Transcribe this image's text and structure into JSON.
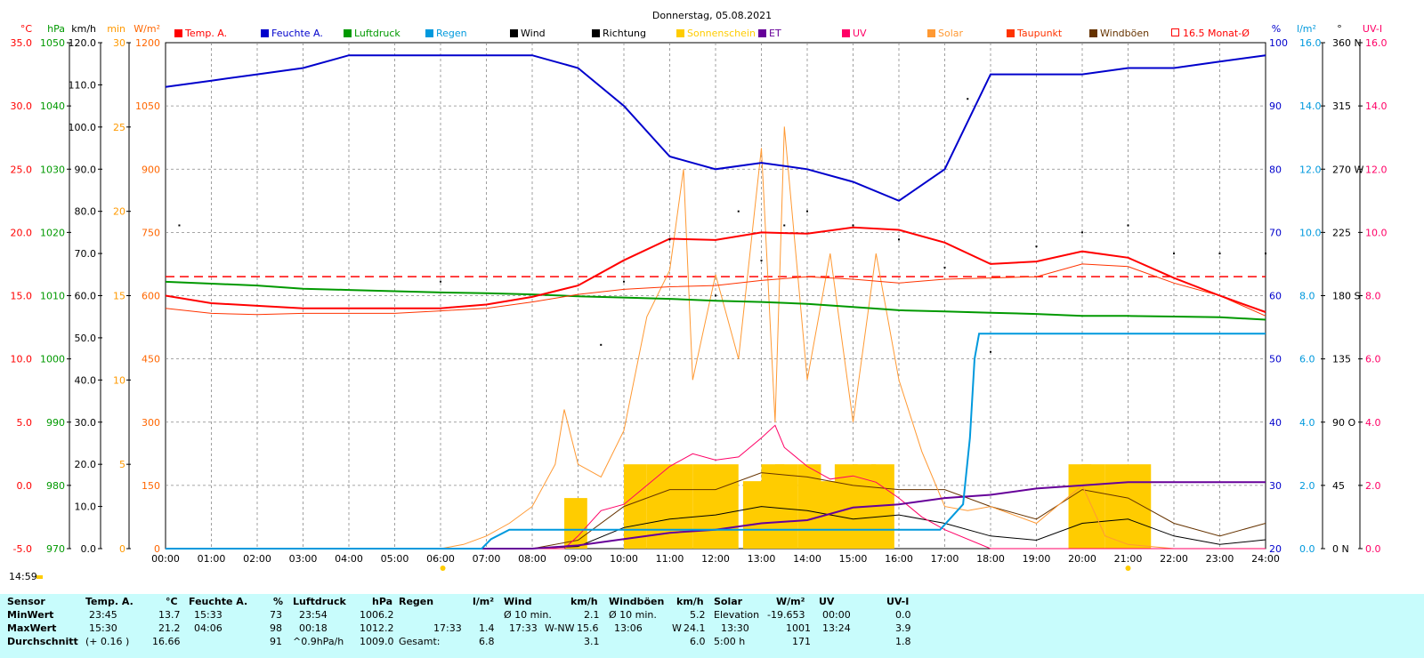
{
  "title": "Donnerstag, 05.08.2021",
  "time_stamp": "14:59",
  "axes_left": [
    {
      "unit": "°C",
      "color": "#ff0000",
      "ticks": [
        "35.0",
        "30.0",
        "25.0",
        "20.0",
        "15.0",
        "10.0",
        "5.0",
        "0.0",
        "-5.0"
      ]
    },
    {
      "unit": "hPa",
      "color": "#009900",
      "ticks": [
        "1050",
        "1040",
        "1030",
        "1020",
        "1010",
        "1000",
        "990",
        "980",
        "970"
      ]
    },
    {
      "unit": "km/h",
      "color": "#000000",
      "ticks": [
        "120.0",
        "110.0",
        "100.0",
        "90.0",
        "80.0",
        "70.0",
        "60.0",
        "50.0",
        "40.0",
        "30.0",
        "20.0",
        "10.0",
        "0.0"
      ]
    },
    {
      "unit": "min",
      "color": "#ff9900",
      "ticks": [
        "30",
        "25",
        "20",
        "15",
        "10",
        "5",
        "0"
      ]
    },
    {
      "unit": "W/m²",
      "color": "#ff6600",
      "ticks": [
        "1200",
        "1050",
        "900",
        "750",
        "600",
        "450",
        "300",
        "150",
        "0"
      ]
    }
  ],
  "axes_right": [
    {
      "unit": "%",
      "color": "#0000cc",
      "ticks": [
        "100",
        "90",
        "80",
        "70",
        "60",
        "50",
        "40",
        "30",
        "20"
      ]
    },
    {
      "unit": "l/m²",
      "color": "#0099dd",
      "ticks": [
        "16.0",
        "14.0",
        "12.0",
        "10.0",
        "8.0",
        "6.0",
        "4.0",
        "2.0",
        "0.0"
      ]
    },
    {
      "unit": "°",
      "color": "#000000",
      "ticks": [
        "360 N",
        "315",
        "270 W",
        "225",
        "180 S",
        "135",
        "90 O",
        "45",
        "0 N"
      ]
    },
    {
      "unit": "UV-I",
      "color": "#ff0066",
      "ticks": [
        "16.0",
        "14.0",
        "12.0",
        "10.0",
        "8.0",
        "6.0",
        "4.0",
        "2.0",
        "0.0"
      ]
    }
  ],
  "x_ticks": [
    "00:00",
    "01:00",
    "02:00",
    "03:00",
    "04:00",
    "05:00",
    "06:00",
    "07:00",
    "08:00",
    "09:00",
    "10:00",
    "11:00",
    "12:00",
    "13:00",
    "14:00",
    "15:00",
    "16:00",
    "17:00",
    "18:00",
    "19:00",
    "20:00",
    "21:00",
    "22:00",
    "23:00",
    "24:00"
  ],
  "legend": [
    {
      "label": "Temp. A.",
      "color": "#ff0000"
    },
    {
      "label": "Feuchte A.",
      "color": "#0000cc"
    },
    {
      "label": "Luftdruck",
      "color": "#009900"
    },
    {
      "label": "Regen",
      "color": "#0099dd"
    },
    {
      "label": "Wind",
      "color": "#000000"
    },
    {
      "label": "Richtung",
      "color": "#000000"
    },
    {
      "label": "Sonnenschein",
      "color": "#ffcc00"
    },
    {
      "label": "ET",
      "color": "#660099"
    },
    {
      "label": "UV",
      "color": "#ff0066"
    },
    {
      "label": "Solar",
      "color": "#ff9933"
    },
    {
      "label": "Taupunkt",
      "color": "#ff3300"
    },
    {
      "label": "Windböen",
      "color": "#663300"
    },
    {
      "label": "16.5 Monat-Ø",
      "color": "#ff0000"
    }
  ],
  "chart_data": {
    "type": "line",
    "title": "Donnerstag, 05.08.2021",
    "x_range": [
      "00:00",
      "24:00"
    ],
    "month_avg_temp": 16.5,
    "series": [
      {
        "name": "Temp. A.",
        "unit": "°C",
        "x": [
          0,
          1,
          2,
          3,
          4,
          5,
          6,
          7,
          8,
          9,
          10,
          11,
          12,
          13,
          14,
          15,
          16,
          17,
          18,
          19,
          20,
          21,
          22,
          23,
          24
        ],
        "values": [
          15.0,
          14.4,
          14.2,
          14.0,
          14.0,
          14.0,
          14.0,
          14.3,
          14.9,
          15.8,
          17.8,
          19.5,
          19.4,
          20.0,
          19.9,
          20.4,
          20.2,
          19.2,
          17.5,
          17.7,
          18.5,
          18.0,
          16.4,
          15.0,
          13.7
        ]
      },
      {
        "name": "Feuchte A.",
        "unit": "%",
        "x": [
          0,
          1,
          2,
          3,
          4,
          5,
          6,
          7,
          8,
          9,
          10,
          11,
          12,
          13,
          14,
          15,
          16,
          17,
          18,
          19,
          20,
          21,
          22,
          23,
          24
        ],
        "values": [
          93,
          94,
          95,
          96,
          98,
          98,
          98,
          98,
          98,
          96,
          90,
          82,
          80,
          81,
          80,
          78,
          75,
          80,
          95,
          95,
          95,
          96,
          96,
          97,
          98
        ]
      },
      {
        "name": "Luftdruck",
        "unit": "hPa",
        "x": [
          0,
          1,
          2,
          3,
          4,
          5,
          6,
          7,
          8,
          9,
          10,
          11,
          12,
          13,
          14,
          15,
          16,
          17,
          18,
          19,
          20,
          21,
          22,
          23,
          24
        ],
        "values": [
          1012.2,
          1011.9,
          1011.6,
          1011.1,
          1010.9,
          1010.7,
          1010.5,
          1010.4,
          1010.2,
          1009.9,
          1009.7,
          1009.5,
          1009.2,
          1009.0,
          1008.7,
          1008.2,
          1007.7,
          1007.5,
          1007.3,
          1007.1,
          1006.8,
          1006.8,
          1006.7,
          1006.6,
          1006.2
        ]
      },
      {
        "name": "Taupunkt",
        "unit": "°C",
        "x": [
          0,
          1,
          2,
          3,
          4,
          5,
          6,
          7,
          8,
          9,
          10,
          11,
          12,
          13,
          14,
          15,
          16,
          17,
          18,
          19,
          20,
          21,
          22,
          23,
          24
        ],
        "values": [
          14.0,
          13.6,
          13.5,
          13.6,
          13.6,
          13.6,
          13.8,
          14.0,
          14.5,
          15.1,
          15.5,
          15.7,
          15.8,
          16.2,
          16.5,
          16.3,
          16.0,
          16.3,
          16.4,
          16.5,
          17.5,
          17.3,
          16.0,
          15.0,
          13.4
        ]
      },
      {
        "name": "Solar",
        "unit": "W/m²",
        "x": [
          6,
          6.5,
          7,
          7.5,
          8,
          8.5,
          8.7,
          9,
          9.5,
          10,
          10.5,
          11,
          11.3,
          11.5,
          12,
          12.5,
          13,
          13.3,
          13.5,
          14,
          14.5,
          15,
          15.5,
          16,
          16.5,
          17,
          17.5,
          18,
          19,
          20,
          20.5,
          21,
          22,
          24
        ],
        "values": [
          0,
          10,
          30,
          60,
          100,
          200,
          330,
          200,
          170,
          280,
          550,
          660,
          900,
          400,
          650,
          450,
          950,
          300,
          1001,
          400,
          700,
          300,
          700,
          400,
          230,
          100,
          90,
          100,
          60,
          150,
          30,
          10,
          0,
          0
        ]
      },
      {
        "name": "Regen",
        "unit": "l/m²",
        "x": [
          0,
          6.9,
          7.1,
          7.5,
          16.9,
          17.4,
          17.55,
          17.65,
          17.75,
          24
        ],
        "values": [
          0,
          0,
          0.3,
          0.6,
          0.6,
          1.4,
          3.5,
          6.0,
          6.8,
          6.8
        ]
      },
      {
        "name": "ET",
        "unit": "l/m²",
        "x": [
          0,
          8,
          9,
          10,
          11,
          12,
          13,
          14,
          15,
          16,
          17,
          18,
          19,
          20,
          21,
          24
        ],
        "values": [
          0,
          0,
          0.1,
          0.3,
          0.5,
          0.6,
          0.8,
          0.9,
          1.3,
          1.4,
          1.6,
          1.7,
          1.9,
          2.0,
          2.1,
          2.1
        ]
      },
      {
        "name": "UV",
        "unit": "UV-I",
        "x": [
          0,
          8,
          8.7,
          9,
          9.5,
          10,
          10.5,
          11,
          11.5,
          12,
          12.5,
          13,
          13.3,
          13.5,
          14,
          14.5,
          15,
          15.5,
          16,
          16.5,
          17,
          18,
          24
        ],
        "values": [
          0,
          0,
          0,
          0.4,
          1.2,
          1.4,
          2.0,
          2.6,
          3.0,
          2.8,
          2.9,
          3.5,
          3.9,
          3.2,
          2.6,
          2.2,
          2.3,
          2.1,
          1.6,
          1.0,
          0.6,
          0,
          0
        ]
      },
      {
        "name": "Wind",
        "unit": "km/h",
        "x": [
          0,
          8,
          9,
          10,
          11,
          12,
          13,
          14,
          15,
          16,
          17,
          18,
          19,
          20,
          21,
          22,
          23,
          24
        ],
        "values": [
          0,
          0,
          0.5,
          5,
          7,
          8,
          10,
          9,
          7,
          8,
          6,
          3,
          2,
          6,
          7,
          3,
          1,
          2.1
        ]
      },
      {
        "name": "Windböen",
        "unit": "km/h",
        "x": [
          0,
          8,
          9,
          10,
          11,
          12,
          13,
          14,
          15,
          16,
          17,
          18,
          19,
          20,
          21,
          22,
          23,
          24
        ],
        "values": [
          0,
          0,
          2,
          10,
          14,
          14,
          18,
          17,
          15,
          14,
          14,
          10,
          7,
          14,
          12,
          6,
          3,
          6
        ]
      },
      {
        "name": "Richtung",
        "unit": "°",
        "x": [
          0.3,
          6,
          9.5,
          10,
          11,
          12,
          12.5,
          13,
          13.5,
          14,
          15,
          16,
          17,
          17.5,
          18,
          19,
          20,
          21,
          22,
          23,
          24
        ],
        "values": [
          230,
          190,
          145,
          190,
          220,
          180,
          240,
          205,
          230,
          240,
          230,
          220,
          200,
          320,
          140,
          215,
          225,
          230,
          210,
          210,
          210
        ]
      },
      {
        "name": "Sonnenschein",
        "unit": "min",
        "x": [
          8.7,
          10,
          10.5,
          11,
          11.5,
          12,
          12.6,
          13,
          13.3,
          13.8,
          14.2,
          14.6,
          15,
          15.4,
          19.7,
          20,
          20.5,
          21
        ],
        "values": [
          3,
          5,
          5,
          5,
          5,
          5,
          4,
          5,
          5,
          5,
          4,
          5,
          5,
          5,
          5,
          5,
          5,
          5
        ]
      }
    ]
  },
  "summary": {
    "row_labels": [
      "Sensor",
      "MinWert",
      "MaxWert",
      "Durchschnitt"
    ],
    "temp": {
      "header": "Temp. A.",
      "unit": "°C",
      "min_time": "23:45",
      "min": "13.7",
      "max_time": "15:30",
      "max": "21.2",
      "avg_note": "(+ 0.16 )",
      "avg": "16.66"
    },
    "feuchte": {
      "header": "Feuchte A.",
      "unit": "%",
      "min_time": "15:33",
      "min": "73",
      "max_time": "04:06",
      "max": "98",
      "avg": "91"
    },
    "luftdruck": {
      "header": "Luftdruck",
      "unit": "hPa",
      "min_time": "23:54",
      "min": "1006.2",
      "max_time": "00:18",
      "max": "1012.2",
      "avg_note": "^0.9hPa/h",
      "avg": "1009.0"
    },
    "regen": {
      "header": "Regen",
      "unit": "l/m²",
      "max_time": "17:33",
      "max": "1.4",
      "total_label": "Gesamt:",
      "total": "6.8"
    },
    "wind": {
      "header": "Wind",
      "unit": "km/h",
      "min_label": "Ø 10 min.",
      "min": "2.1",
      "max_time": "17:33",
      "max_dir": "W-NW",
      "max": "15.6",
      "avg": "3.1"
    },
    "windboeen": {
      "header": "Windböen",
      "unit": "km/h",
      "min_label": "Ø 10 min.",
      "min": "5.2",
      "max_time": "13:06",
      "max_dir": "W",
      "max": "24.1",
      "avg": "6.0"
    },
    "solar": {
      "header": "Solar",
      "unit": "W/m²",
      "min_label": "Elevation",
      "min": "-19.653",
      "max_time": "13:30",
      "max": "1001",
      "avg_label": "5:00 h",
      "avg": "171"
    },
    "uv": {
      "header": "UV",
      "unit": "UV-I",
      "min_time": "00:00",
      "min": "0.0",
      "max_time": "13:24",
      "max": "3.9",
      "avg": "1.8"
    }
  }
}
